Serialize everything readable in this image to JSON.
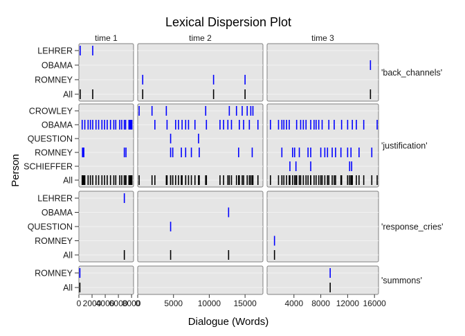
{
  "chart_data": {
    "type": "scatter",
    "subtype": "lexical-dispersion",
    "title": "Lexical Dispersion Plot",
    "xlabel": "Dialogue (Words)",
    "ylabel": "Person",
    "grid": true,
    "columns": [
      {
        "name": "time 1",
        "xlim": [
          0,
          8300
        ],
        "ticks": [
          0,
          2000,
          4000,
          6000,
          8000
        ],
        "tick_labels": [
          "0",
          "2000",
          "4000",
          "6000",
          "8000"
        ]
      },
      {
        "name": "time 2",
        "xlim": [
          0,
          17500
        ],
        "ticks": [
          0,
          5000,
          10000,
          15000
        ],
        "tick_labels": [
          "0",
          "5000",
          "10000",
          "15000"
        ]
      },
      {
        "name": "time 3",
        "xlim": [
          0,
          16600
        ],
        "ticks": [
          4000,
          8000,
          12000,
          16000
        ],
        "tick_labels": [
          "4000",
          "8000",
          "12000",
          "16000"
        ]
      }
    ],
    "panels": [
      {
        "name": "'back_channels'",
        "rows": [
          "LEHRER",
          "OBAMA",
          "ROMNEY",
          "All"
        ],
        "cells": [
          {
            "LEHRER": [
              200,
              2100
            ],
            "OBAMA": [],
            "ROMNEY": []
          },
          {
            "LEHRER": [],
            "OBAMA": [],
            "ROMNEY": [
              700,
              10600,
              15000
            ]
          },
          {
            "LEHRER": [],
            "OBAMA": [
              15400
            ],
            "ROMNEY": []
          }
        ]
      },
      {
        "name": "'justification'",
        "rows": [
          "CROWLEY",
          "OBAMA",
          "QUESTION",
          "ROMNEY",
          "SCHIEFFER",
          "All"
        ],
        "cells": [
          {
            "CROWLEY": [],
            "OBAMA": [
              500,
              900,
              1400,
              1750,
              2100,
              2600,
              3000,
              3500,
              3900,
              4300,
              4800,
              5300,
              5600,
              6200,
              6500,
              6900,
              7100,
              7600,
              7750,
              7900,
              8050
            ],
            "QUESTION": [],
            "ROMNEY": [
              550,
              650,
              750,
              6900,
              7150
            ],
            "SCHIEFFER": []
          },
          {
            "CROWLEY": [
              200,
              2000,
              4000,
              9500,
              12800,
              13800,
              14600,
              15300,
              15800,
              16100
            ],
            "OBAMA": [
              2400,
              4100,
              5300,
              5700,
              6200,
              6700,
              7100,
              8000,
              9600,
              11500,
              12000,
              12600,
              13100,
              14200,
              14800,
              15600,
              16800
            ],
            "QUESTION": [
              4600,
              8500
            ],
            "ROMNEY": [
              4600,
              4900,
              6100,
              6700,
              7500,
              8600,
              14100,
              16000
            ],
            "SCHIEFFER": []
          },
          {
            "CROWLEY": [],
            "OBAMA": [
              500,
              1700,
              2200,
              2500,
              2900,
              3300,
              4400,
              5000,
              5400,
              5800,
              6500,
              7000,
              7300,
              7700,
              8200,
              9200,
              10000,
              11100,
              12000,
              12700,
              13300,
              14400,
              16400
            ],
            "QUESTION": [],
            "ROMNEY": [
              2200,
              3800,
              4100,
              4800,
              6100,
              6500,
              8000,
              8600,
              9000,
              9700,
              10200,
              11000,
              12000,
              12500,
              13700,
              15600
            ],
            "SCHIEFFER": [
              3400,
              4300,
              6500,
              12300,
              12600
            ]
          }
        ]
      },
      {
        "name": "'response_cries'",
        "rows": [
          "LEHRER",
          "OBAMA",
          "QUESTION",
          "ROMNEY",
          "All"
        ],
        "cells": [
          {
            "LEHRER": [
              6900
            ],
            "OBAMA": [],
            "QUESTION": [],
            "ROMNEY": []
          },
          {
            "LEHRER": [],
            "OBAMA": [
              12700
            ],
            "QUESTION": [
              4600
            ],
            "ROMNEY": []
          },
          {
            "LEHRER": [],
            "OBAMA": [],
            "QUESTION": [],
            "ROMNEY": [
              1100
            ]
          }
        ]
      },
      {
        "name": "'summons'",
        "rows": [
          "ROMNEY",
          "All"
        ],
        "cells": [
          {
            "ROMNEY": [
              150
            ]
          },
          {
            "ROMNEY": []
          },
          {
            "ROMNEY": [
              9400
            ]
          }
        ]
      }
    ],
    "colors": {
      "word_marks": "#0000ff",
      "all_marks": "#000000",
      "panel_bg": "#e5e5e5",
      "gridline": "#f2f2f2"
    }
  }
}
